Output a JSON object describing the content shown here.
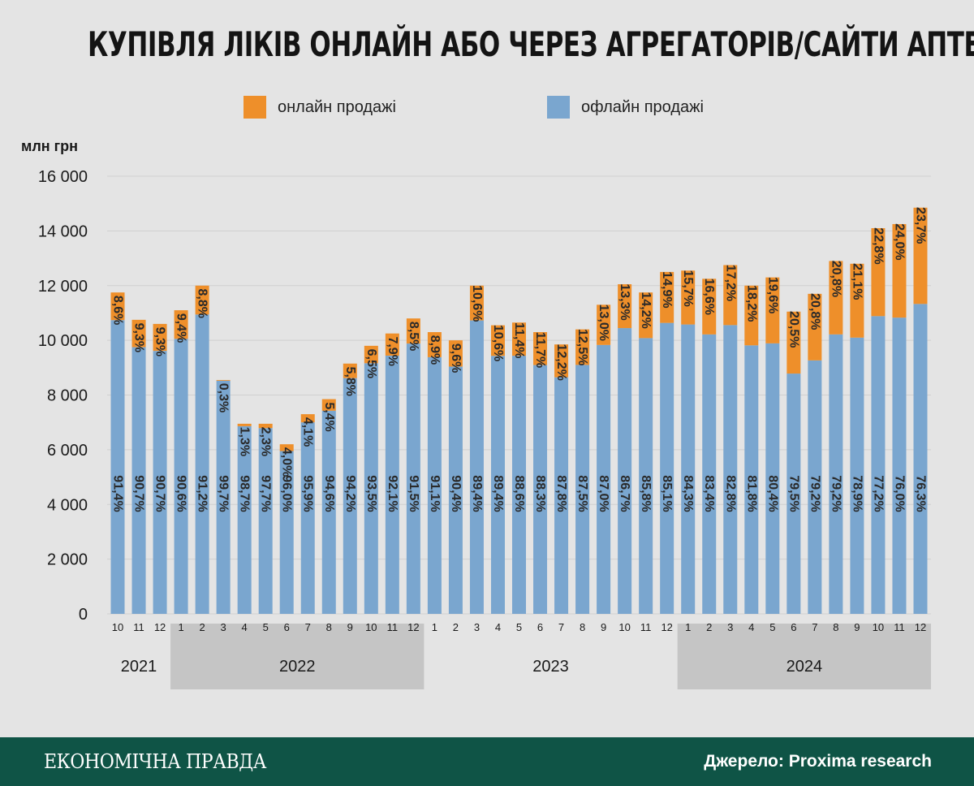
{
  "title": "КУПІВЛЯ ЛІКІВ ОНЛАЙН АБО ЧЕРЕЗ АГРЕГАТОРІВ/САЙТИ АПТЕК",
  "legend": {
    "online": "онлайн продажі",
    "offline": "офлайн продажі"
  },
  "colors": {
    "online": "#ee8f2a",
    "offline": "#7aa6cf",
    "year_band": "#c5c5c5",
    "footer": "#0f5446",
    "grid": "#cfcfcf"
  },
  "footer": {
    "brand": "ЕКОНОМІЧНА ПРАВДА",
    "source": "Джерело: Proxima research"
  },
  "chart_data": {
    "type": "bar",
    "stacked": true,
    "ylabel": "млн грн",
    "ylim": [
      0,
      16000
    ],
    "yticks": [
      "0",
      "2 000",
      "4 000",
      "6 000",
      "8 000",
      "10 000",
      "12 000",
      "14 000",
      "16 000"
    ],
    "grid": true,
    "legend_position": "top",
    "categories": [
      "10",
      "11",
      "12",
      "1",
      "2",
      "3",
      "4",
      "5",
      "6",
      "7",
      "8",
      "9",
      "10",
      "11",
      "12",
      "1",
      "2",
      "3",
      "4",
      "5",
      "6",
      "7",
      "8",
      "9",
      "10",
      "11",
      "12",
      "1",
      "2",
      "3",
      "4",
      "5",
      "6",
      "7",
      "8",
      "9",
      "10",
      "11",
      "12"
    ],
    "years": [
      {
        "label": "2021",
        "count": 3,
        "shaded": false
      },
      {
        "label": "2022",
        "count": 12,
        "shaded": true
      },
      {
        "label": "2023",
        "count": 12,
        "shaded": false
      },
      {
        "label": "2024",
        "count": 12,
        "shaded": true
      }
    ],
    "totals": [
      11750,
      10750,
      10600,
      11100,
      12000,
      8550,
      6950,
      6950,
      6200,
      7300,
      7850,
      9150,
      9800,
      10250,
      10800,
      10300,
      10000,
      12000,
      10550,
      10650,
      10300,
      9850,
      10400,
      11300,
      12050,
      11750,
      12500,
      12550,
      12250,
      12750,
      12000,
      12300,
      11050,
      11700,
      12900,
      12800,
      14100,
      14250,
      14850
    ],
    "series": [
      {
        "name": "офлайн продажі",
        "percent_labels": [
          "91,4%",
          "90,7%",
          "90,7%",
          "90,6%",
          "91,2%",
          "99,7%",
          "98,7%",
          "97,7%",
          "96,0%",
          "95,9%",
          "94,6%",
          "94,2%",
          "93,5%",
          "92,1%",
          "91,5%",
          "91,1%",
          "90,4%",
          "89,4%",
          "89,4%",
          "88,6%",
          "88,3%",
          "87,8%",
          "87,5%",
          "87,0%",
          "86,7%",
          "85,8%",
          "85,1%",
          "84,3%",
          "83,4%",
          "82,8%",
          "81,8%",
          "80,4%",
          "79,5%",
          "79,2%",
          "79,2%",
          "78,9%",
          "77,2%",
          "76,0%",
          "76,3%"
        ]
      },
      {
        "name": "онлайн продажі",
        "percent_labels": [
          "8,6%",
          "9,3%",
          "9,3%",
          "9,4%",
          "8,8%",
          "0,3%",
          "1,3%",
          "2,3%",
          "4,0%",
          "4,1%",
          "5,4%",
          "5,8%",
          "6,5%",
          "7,9%",
          "8,5%",
          "8,9%",
          "9,6%",
          "10,6%",
          "10,6%",
          "11,4%",
          "11,7%",
          "12,2%",
          "12,5%",
          "13,0%",
          "13,3%",
          "14,2%",
          "14,9%",
          "15,7%",
          "16,6%",
          "17,2%",
          "18,2%",
          "19,6%",
          "20,5%",
          "20,8%",
          "20,8%",
          "21,1%",
          "22,8%",
          "24,0%",
          "23,7%"
        ]
      }
    ]
  }
}
